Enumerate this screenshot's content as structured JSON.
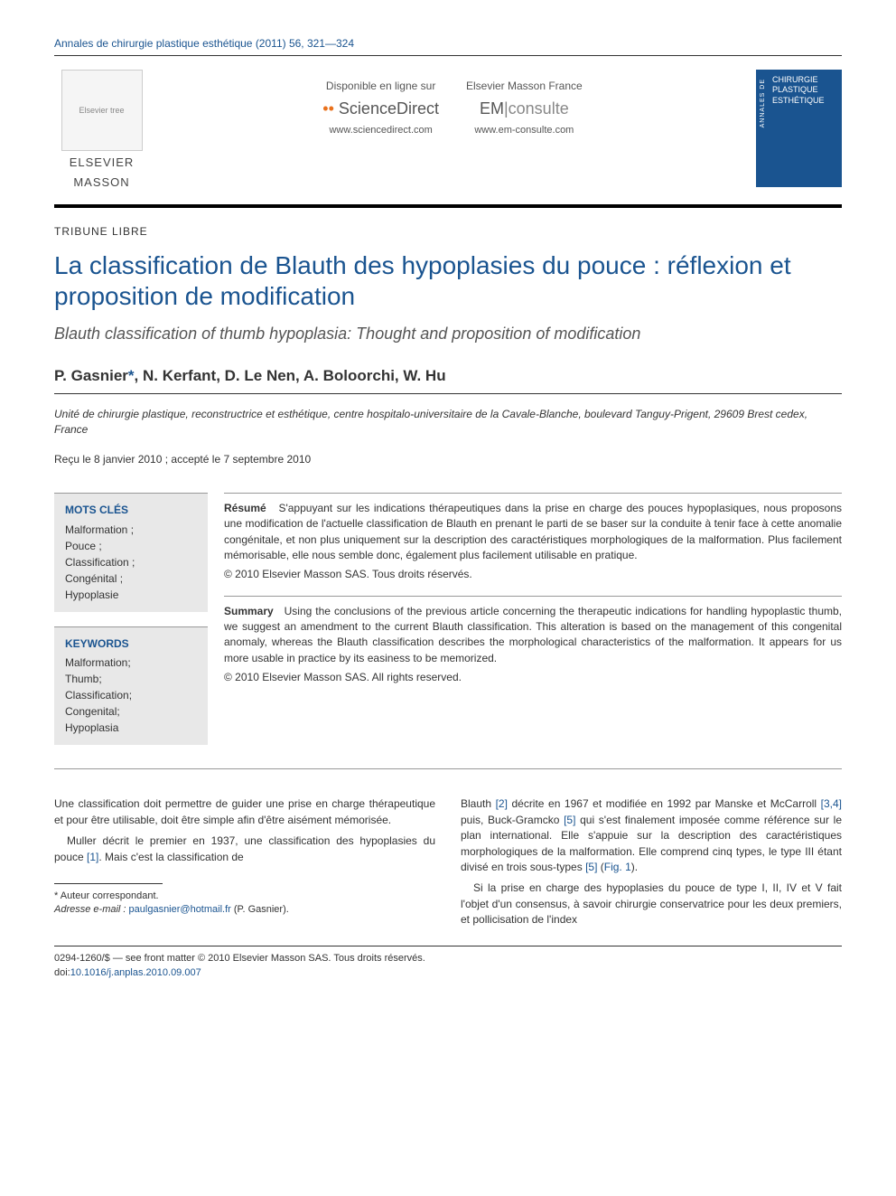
{
  "journal_ref": "Annales de chirurgie plastique esthétique (2011) 56, 321—324",
  "publisher": {
    "name_line1": "ELSEVIER",
    "name_line2": "MASSON",
    "tree_alt": "Elsevier tree"
  },
  "links": {
    "sd_label": "Disponible en ligne sur",
    "sd_brand_prefix": "Science",
    "sd_brand_suffix": "Direct",
    "sd_url": "www.sciencedirect.com",
    "em_label": "Elsevier Masson France",
    "em_brand_prefix": "EM",
    "em_brand_suffix": "consulte",
    "em_url": "www.em-consulte.com"
  },
  "cover": {
    "side": "ANNALES DE",
    "line1": "CHIRURGIE",
    "line2": "PLASTIQUE",
    "line3": "ESTHÉTIQUE"
  },
  "section_label": "TRIBUNE LIBRE",
  "title_fr": "La classification de Blauth des hypoplasies du pouce : réflexion et proposition de modification",
  "title_en": "Blauth classification of thumb hypoplasia: Thought and proposition of modification",
  "authors": "P. Gasnier",
  "authors_rest": ", N. Kerfant, D. Le Nen, A. Boloorchi, W. Hu",
  "author_star": "*",
  "affiliation": "Unité de chirurgie plastique, reconstructrice et esthétique, centre hospitalo-universitaire de la Cavale-Blanche, boulevard Tanguy-Prigent, 29609 Brest cedex, France",
  "dates": "Reçu le 8 janvier 2010 ; accepté le 7 septembre 2010",
  "keywords_fr": {
    "title": "MOTS CLÉS",
    "items": [
      "Malformation ;",
      "Pouce ;",
      "Classification ;",
      "Congénital ;",
      "Hypoplasie"
    ]
  },
  "keywords_en": {
    "title": "KEYWORDS",
    "items": [
      "Malformation;",
      "Thumb;",
      "Classification;",
      "Congenital;",
      "Hypoplasia"
    ]
  },
  "resume": {
    "title": "Résumé",
    "body": "S'appuyant sur les indications thérapeutiques dans la prise en charge des pouces hypoplasiques, nous proposons une modification de l'actuelle classification de Blauth en prenant le parti de se baser sur la conduite à tenir face à cette anomalie congénitale, et non plus uniquement sur la description des caractéristiques morphologiques de la malformation. Plus facilement mémorisable, elle nous semble donc, également plus facilement utilisable en pratique.",
    "copyright": "© 2010 Elsevier Masson SAS. Tous droits réservés."
  },
  "summary": {
    "title": "Summary",
    "body": "Using the conclusions of the previous article concerning the therapeutic indications for handling hypoplastic thumb, we suggest an amendment to the current Blauth classification. This alteration is based on the management of this congenital anomaly, whereas the Blauth classification describes the morphological characteristics of the malformation. It appears for us more usable in practice by its easiness to be memorized.",
    "copyright": "© 2010 Elsevier Masson SAS. All rights reserved."
  },
  "body": {
    "left_p1": "Une classification doit permettre de guider une prise en charge thérapeutique et pour être utilisable, doit être simple afin d'être aisément mémorisée.",
    "left_p2a": "Muller décrit le premier en 1937, une classification des hypoplasies du pouce ",
    "left_ref1": "[1]",
    "left_p2b": ". Mais c'est la classification de",
    "right_p1a": "Blauth ",
    "right_ref2": "[2]",
    "right_p1b": " décrite en 1967 et modifiée en 1992 par Manske et McCarroll ",
    "right_ref34": "[3,4]",
    "right_p1c": " puis, Buck-Gramcko ",
    "right_ref5a": "[5]",
    "right_p1d": " qui s'est finalement imposée comme référence sur le plan international. Elle s'appuie sur la description des caractéristiques morphologiques de la malformation. Elle comprend cinq types, le type III étant divisé en trois sous-types ",
    "right_ref5b": "[5]",
    "right_p1e": " (",
    "right_fig1": "Fig. 1",
    "right_p1f": ").",
    "right_p2": "Si la prise en charge des hypoplasies du pouce de type I, II, IV et V fait l'objet d'un consensus, à savoir chirurgie conservatrice pour les deux premiers, et pollicisation de l'index"
  },
  "footnote": {
    "corr": "* Auteur correspondant.",
    "email_label": "Adresse e-mail : ",
    "email": "paulgasnier@hotmail.fr",
    "email_suffix": " (P. Gasnier)."
  },
  "footer": {
    "line1": "0294-1260/$ — see front matter © 2010 Elsevier Masson SAS. Tous droits réservés.",
    "doi_label": "doi:",
    "doi": "10.1016/j.anplas.2010.09.007"
  }
}
